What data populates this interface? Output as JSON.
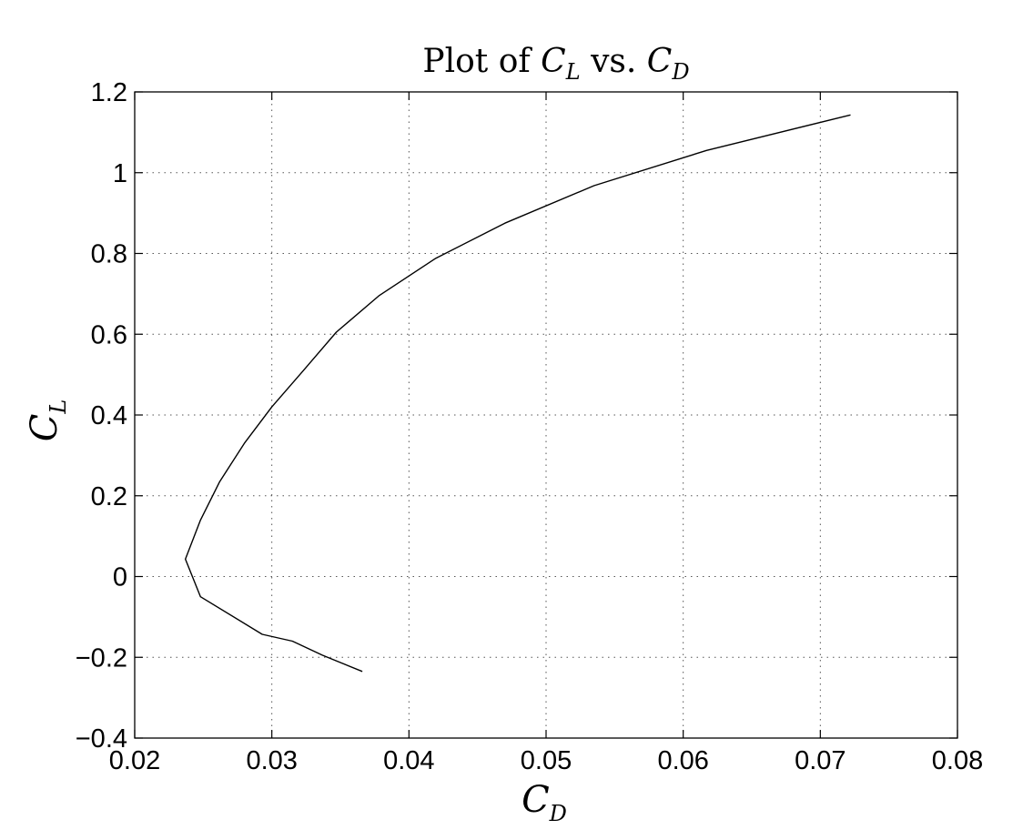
{
  "chart_data": {
    "type": "line",
    "title": {
      "prefix": "Plot of ",
      "y_symbol": "C",
      "y_subscript": "L",
      "middle": " vs. ",
      "x_symbol": "C",
      "x_subscript": "D"
    },
    "xlabel": {
      "symbol": "C",
      "subscript": "D"
    },
    "ylabel": {
      "symbol": "C",
      "subscript": "L"
    },
    "xlim": [
      0.02,
      0.08
    ],
    "ylim": [
      -0.4,
      1.2
    ],
    "xticks": [
      "0.02",
      "0.03",
      "0.04",
      "0.05",
      "0.06",
      "0.07",
      "0.08"
    ],
    "yticks": [
      "−0.4",
      "−0.2",
      "0",
      "0.2",
      "0.4",
      "0.6",
      "0.8",
      "1",
      "1.2"
    ],
    "grid": true,
    "series": [
      {
        "color": "#000000",
        "x": [
          0.0366,
          0.0337,
          0.0315,
          0.0293,
          0.0248,
          0.0237,
          0.0248,
          0.0262,
          0.028,
          0.03,
          0.0323,
          0.0347,
          0.0378,
          0.0419,
          0.047,
          0.0535,
          0.0617,
          0.0722
        ],
        "y": [
          -0.235,
          -0.195,
          -0.16,
          -0.143,
          -0.05,
          0.043,
          0.14,
          0.235,
          0.33,
          0.42,
          0.51,
          0.605,
          0.695,
          0.787,
          0.875,
          0.968,
          1.055,
          1.143
        ]
      }
    ]
  }
}
